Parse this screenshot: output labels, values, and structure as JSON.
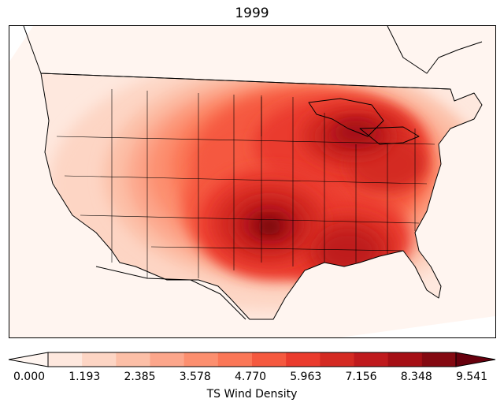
{
  "title": "1999",
  "colorbar": {
    "label": "TS Wind Density",
    "ticks": [
      "0.000",
      "1.193",
      "2.385",
      "3.578",
      "4.770",
      "5.963",
      "7.156",
      "8.348",
      "9.541"
    ],
    "min": 0.0,
    "max": 9.541,
    "extend": "both",
    "colors": [
      "#fff5f0",
      "#fee8de",
      "#fdd5c4",
      "#fcbfa7",
      "#fca68b",
      "#fc8f6f",
      "#fb7757",
      "#f5593f",
      "#ea3b2d",
      "#d42a22",
      "#bf1a1d",
      "#a50f15",
      "#840911",
      "#67000d"
    ]
  },
  "map": {
    "projection": "Lambert conformal, contiguous United States",
    "density_peak_region": "central Oklahoma",
    "colors": {
      "land_border": "#000000",
      "background": "#ffffff"
    }
  }
}
